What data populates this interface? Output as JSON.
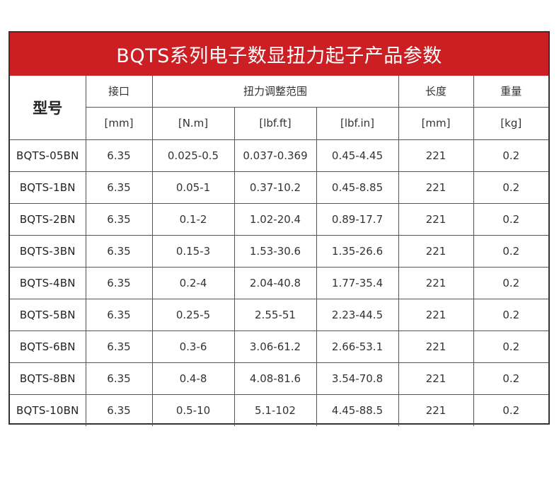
{
  "title": "BQTS系列电子数显扭力起子产品参数",
  "header": {
    "model": "型号",
    "interface": "接口",
    "torque_range": "扭力调整范围",
    "length": "长度",
    "weight": "重量"
  },
  "units": {
    "interface": "[mm]",
    "nm": "[N.m]",
    "lbfft": "[lbf.ft]",
    "lbfin": "[lbf.in]",
    "length": "[mm]",
    "weight": "[kg]"
  },
  "rows": [
    {
      "model": "BQTS-05BN",
      "interface": "6.35",
      "nm": "0.025-0.5",
      "lbfft": "0.037-0.369",
      "lbfin": "0.45-4.45",
      "length": "221",
      "weight": "0.2"
    },
    {
      "model": "BQTS-1BN",
      "interface": "6.35",
      "nm": "0.05-1",
      "lbfft": "0.37-10.2",
      "lbfin": "0.45-8.85",
      "length": "221",
      "weight": "0.2"
    },
    {
      "model": "BQTS-2BN",
      "interface": "6.35",
      "nm": "0.1-2",
      "lbfft": "1.02-20.4",
      "lbfin": "0.89-17.7",
      "length": "221",
      "weight": "0.2"
    },
    {
      "model": "BQTS-3BN",
      "interface": "6.35",
      "nm": "0.15-3",
      "lbfft": "1.53-30.6",
      "lbfin": "1.35-26.6",
      "length": "221",
      "weight": "0.2"
    },
    {
      "model": "BQTS-4BN",
      "interface": "6.35",
      "nm": "0.2-4",
      "lbfft": "2.04-40.8",
      "lbfin": "1.77-35.4",
      "length": "221",
      "weight": "0.2"
    },
    {
      "model": "BQTS-5BN",
      "interface": "6.35",
      "nm": "0.25-5",
      "lbfft": "2.55-51",
      "lbfin": "2.23-44.5",
      "length": "221",
      "weight": "0.2"
    },
    {
      "model": "BQTS-6BN",
      "interface": "6.35",
      "nm": "0.3-6",
      "lbfft": "3.06-61.2",
      "lbfin": "2.66-53.1",
      "length": "221",
      "weight": "0.2"
    },
    {
      "model": "BQTS-8BN",
      "interface": "6.35",
      "nm": "0.4-8",
      "lbfft": "4.08-81.6",
      "lbfin": "3.54-70.8",
      "length": "221",
      "weight": "0.2"
    },
    {
      "model": "BQTS-10BN",
      "interface": "6.35",
      "nm": "0.5-10",
      "lbfft": "5.1-102",
      "lbfin": "4.45-88.5",
      "length": "221",
      "weight": "0.2"
    }
  ],
  "colors": {
    "title_bg": "#cc1f24",
    "title_text": "#ffffff",
    "border": "#333333"
  }
}
